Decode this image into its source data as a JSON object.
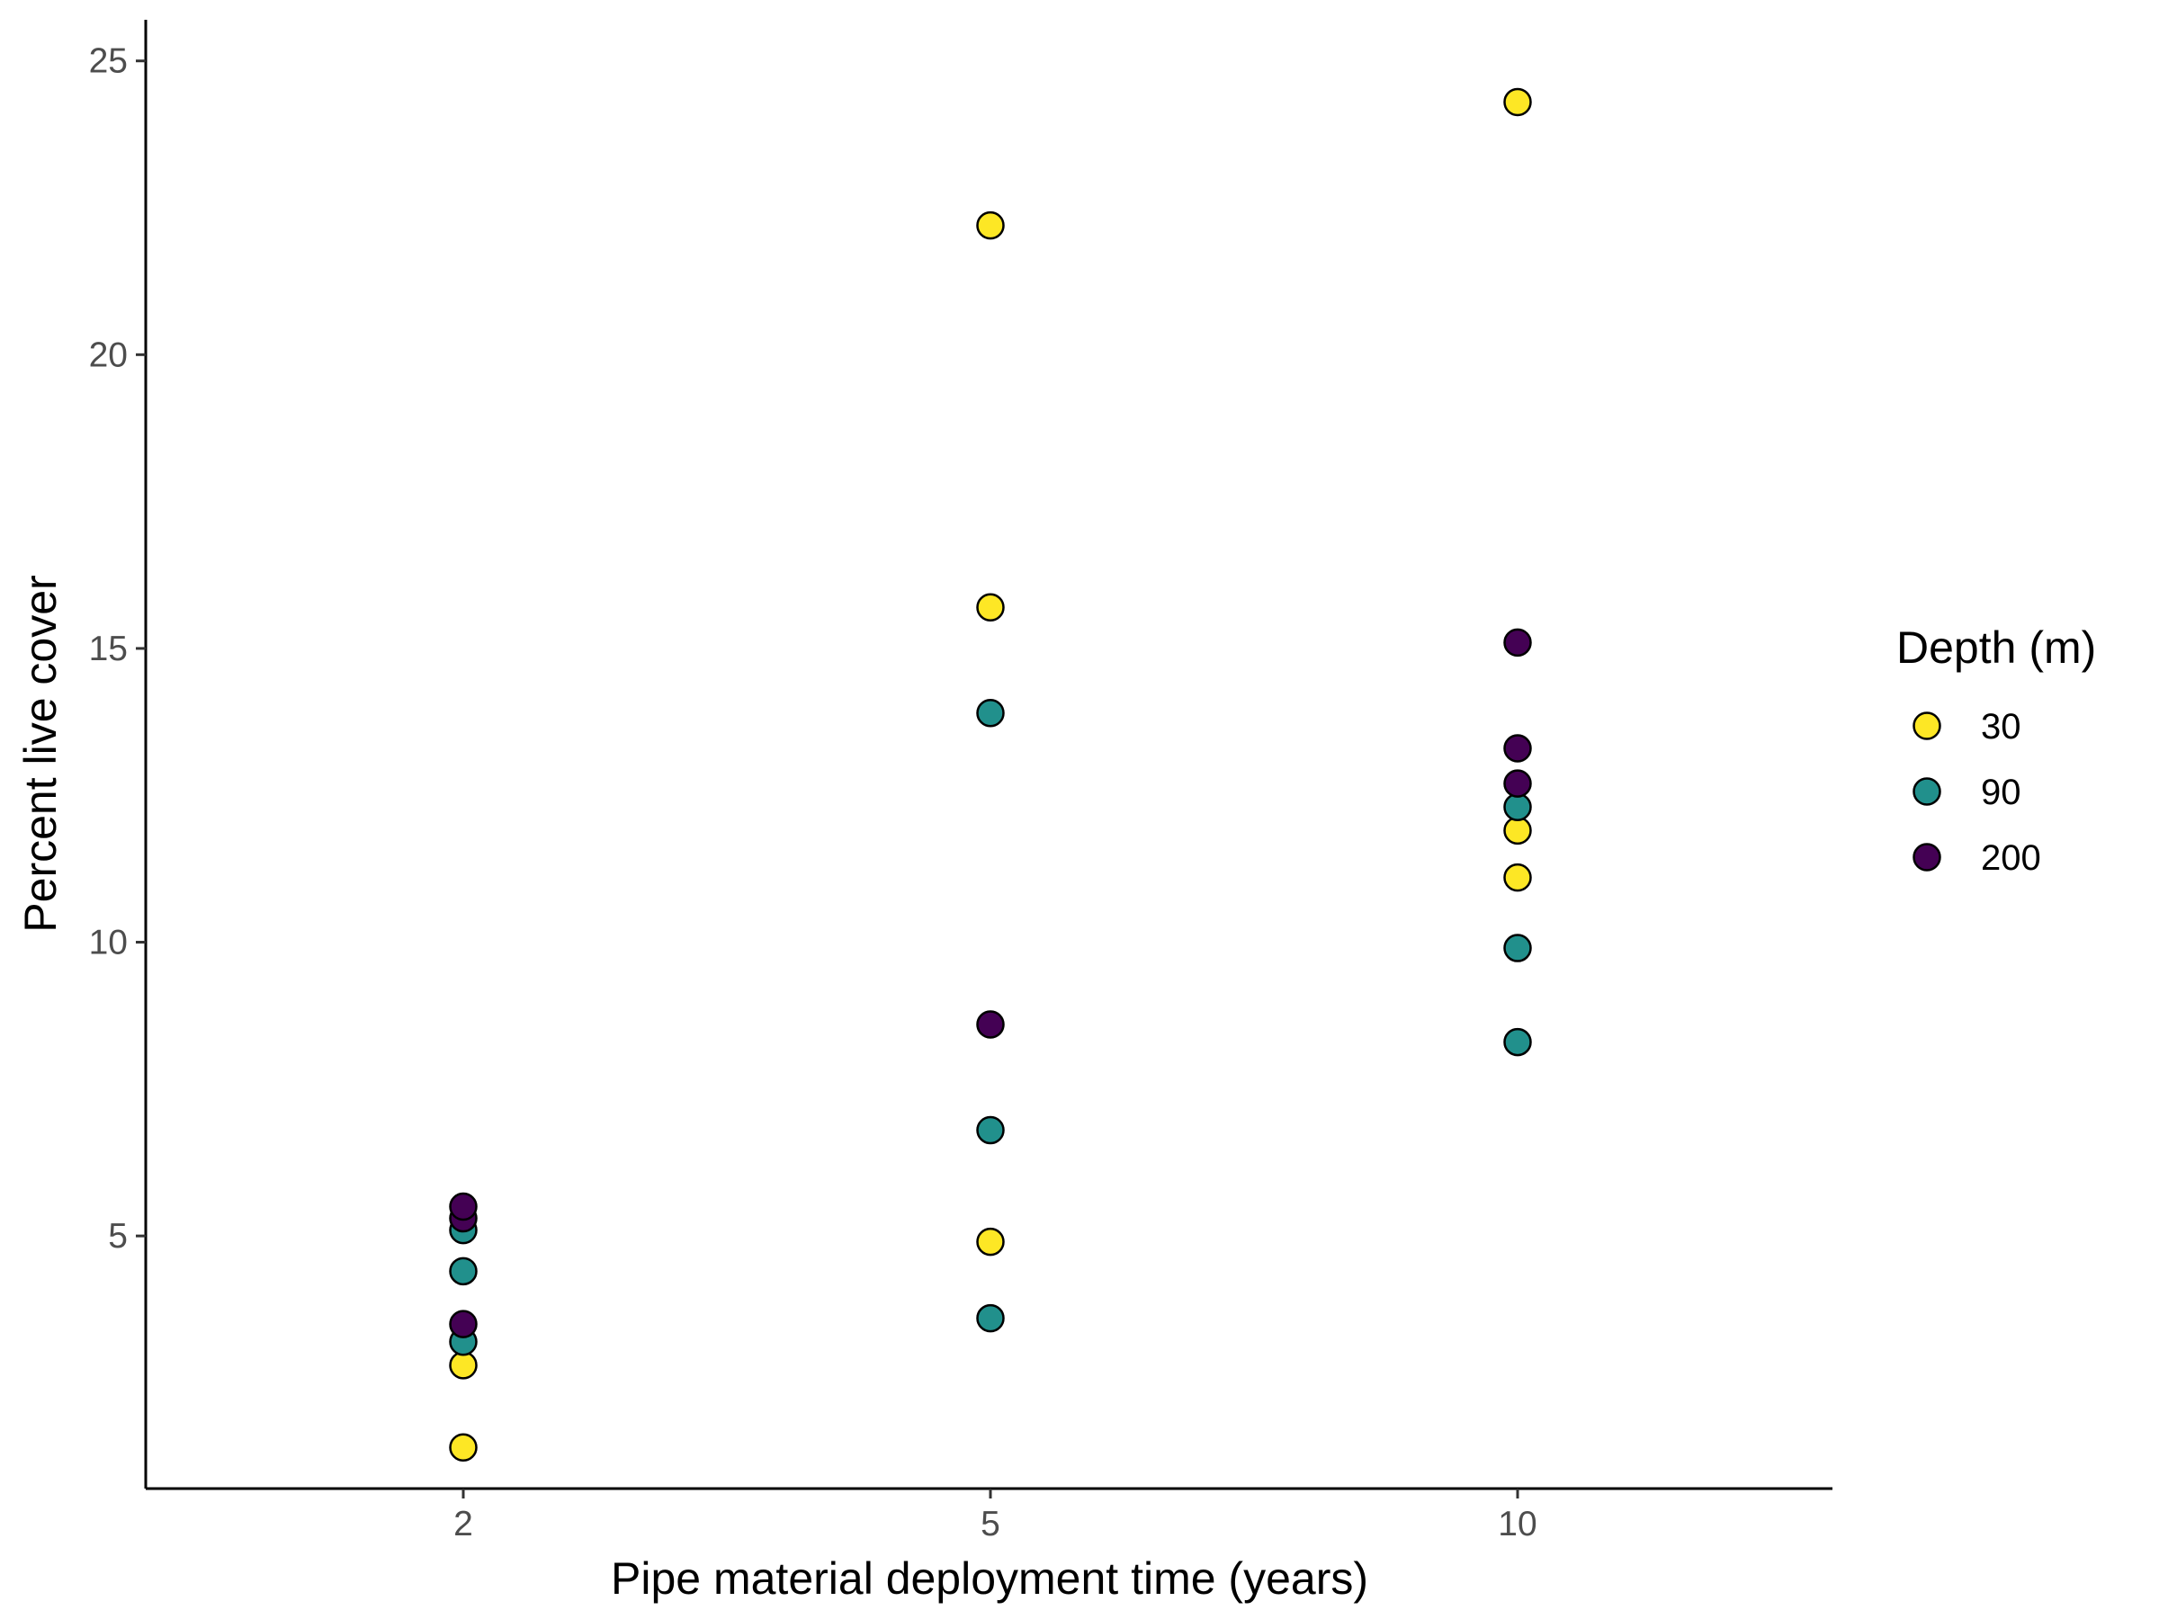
{
  "chart_data": {
    "type": "scatter",
    "title": "",
    "xlabel": "Pipe material deployment time (years)",
    "ylabel": "Percent live cover",
    "x_categories": [
      "2",
      "5",
      "10"
    ],
    "y_ticks": [
      5,
      10,
      15,
      20,
      25
    ],
    "ylim": [
      0.7,
      25.7
    ],
    "grid": false,
    "legend": {
      "title": "Depth (m)",
      "position": "right",
      "entries": [
        {
          "label": "30",
          "color": "#fde725"
        },
        {
          "label": "90",
          "color": "#21908c"
        },
        {
          "label": "200",
          "color": "#440154"
        }
      ]
    },
    "series": [
      {
        "name": "30",
        "color": "#fde725",
        "points": [
          {
            "x": "2",
            "y": 1.4
          },
          {
            "x": "2",
            "y": 2.8
          },
          {
            "x": "5",
            "y": 4.9
          },
          {
            "x": "5",
            "y": 15.7
          },
          {
            "x": "5",
            "y": 22.2
          },
          {
            "x": "10",
            "y": 11.1
          },
          {
            "x": "10",
            "y": 11.9
          },
          {
            "x": "10",
            "y": 24.3
          }
        ]
      },
      {
        "name": "90",
        "color": "#21908c",
        "points": [
          {
            "x": "2",
            "y": 3.2
          },
          {
            "x": "2",
            "y": 4.4
          },
          {
            "x": "2",
            "y": 5.1
          },
          {
            "x": "5",
            "y": 3.6
          },
          {
            "x": "5",
            "y": 6.8
          },
          {
            "x": "5",
            "y": 13.9
          },
          {
            "x": "10",
            "y": 8.3
          },
          {
            "x": "10",
            "y": 9.9
          },
          {
            "x": "10",
            "y": 12.3
          }
        ]
      },
      {
        "name": "200",
        "color": "#440154",
        "points": [
          {
            "x": "2",
            "y": 3.5
          },
          {
            "x": "2",
            "y": 5.3
          },
          {
            "x": "2",
            "y": 5.5
          },
          {
            "x": "5",
            "y": 8.6
          },
          {
            "x": "10",
            "y": 12.7
          },
          {
            "x": "10",
            "y": 13.3
          },
          {
            "x": "10",
            "y": 15.1
          }
        ]
      }
    ]
  }
}
